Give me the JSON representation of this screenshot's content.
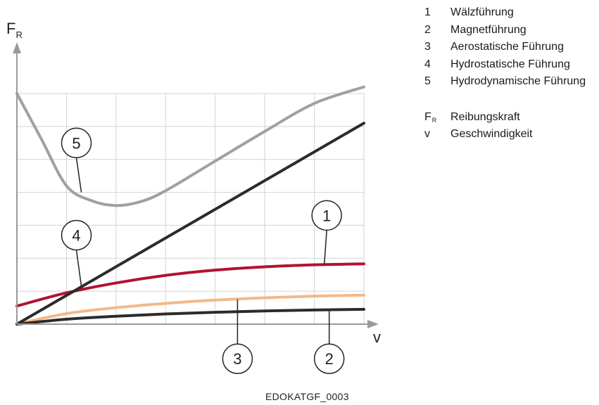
{
  "chart_data": {
    "type": "line",
    "axes": {
      "y_symbol": "F",
      "y_subscript": "R",
      "x_symbol": "v"
    },
    "xlim": [
      0,
      7
    ],
    "ylim": [
      0,
      7
    ],
    "grid": true,
    "series": [
      {
        "id": "1",
        "color": "#b3122f",
        "x": [
          0,
          1,
          2,
          3,
          4,
          5,
          6,
          7
        ],
        "y": [
          0.55,
          0.95,
          1.25,
          1.48,
          1.64,
          1.74,
          1.8,
          1.83
        ]
      },
      {
        "id": "2",
        "color": "#2b2b2b",
        "x": [
          0,
          1,
          2,
          3,
          4,
          5,
          6,
          7
        ],
        "y": [
          0,
          0.15,
          0.24,
          0.31,
          0.36,
          0.4,
          0.43,
          0.45
        ]
      },
      {
        "id": "3",
        "color": "#f2b98a",
        "x": [
          0,
          1,
          2,
          3,
          4,
          5,
          6,
          7
        ],
        "y": [
          0,
          0.32,
          0.5,
          0.63,
          0.73,
          0.8,
          0.85,
          0.88
        ]
      },
      {
        "id": "4",
        "color": "#2b2b2b",
        "x": [
          0,
          7
        ],
        "y": [
          0,
          6.1
        ]
      },
      {
        "id": "5",
        "color": "#a0a0a0",
        "x": [
          0,
          0.5,
          1,
          1.5,
          2,
          2.5,
          3,
          4,
          5,
          6,
          7
        ],
        "y": [
          7.0,
          5.6,
          4.2,
          3.75,
          3.6,
          3.72,
          4.05,
          4.95,
          5.85,
          6.7,
          7.2
        ]
      }
    ],
    "callouts": [
      {
        "label": "5",
        "x": 1.2,
        "y": 5.5,
        "target": [
          1.3,
          4.0
        ]
      },
      {
        "label": "4",
        "x": 1.2,
        "y": 2.7,
        "target": [
          1.3,
          1.15
        ]
      },
      {
        "label": "1",
        "x": 6.25,
        "y": 3.3,
        "target": [
          6.2,
          1.8
        ]
      },
      {
        "label": "3",
        "x": 4.45,
        "y": -1.05,
        "target": [
          4.45,
          0.75
        ]
      },
      {
        "label": "2",
        "x": 6.3,
        "y": -1.05,
        "target": [
          6.3,
          0.44
        ]
      }
    ]
  },
  "legend": {
    "items": [
      {
        "num": "1",
        "label": "Wälzführung"
      },
      {
        "num": "2",
        "label": "Magnetführung"
      },
      {
        "num": "3",
        "label": "Aerostatische Führung"
      },
      {
        "num": "4",
        "label": "Hydrostatische Führung"
      },
      {
        "num": "5",
        "label": "Hydrodynamische Führung"
      }
    ],
    "symbols": [
      {
        "sym": "F",
        "sub": "R",
        "label": "Reibungskraft"
      },
      {
        "sym": "v",
        "sub": "",
        "label": "Geschwindigkeit"
      }
    ]
  },
  "figure_id": "EDOKATGF_0003"
}
